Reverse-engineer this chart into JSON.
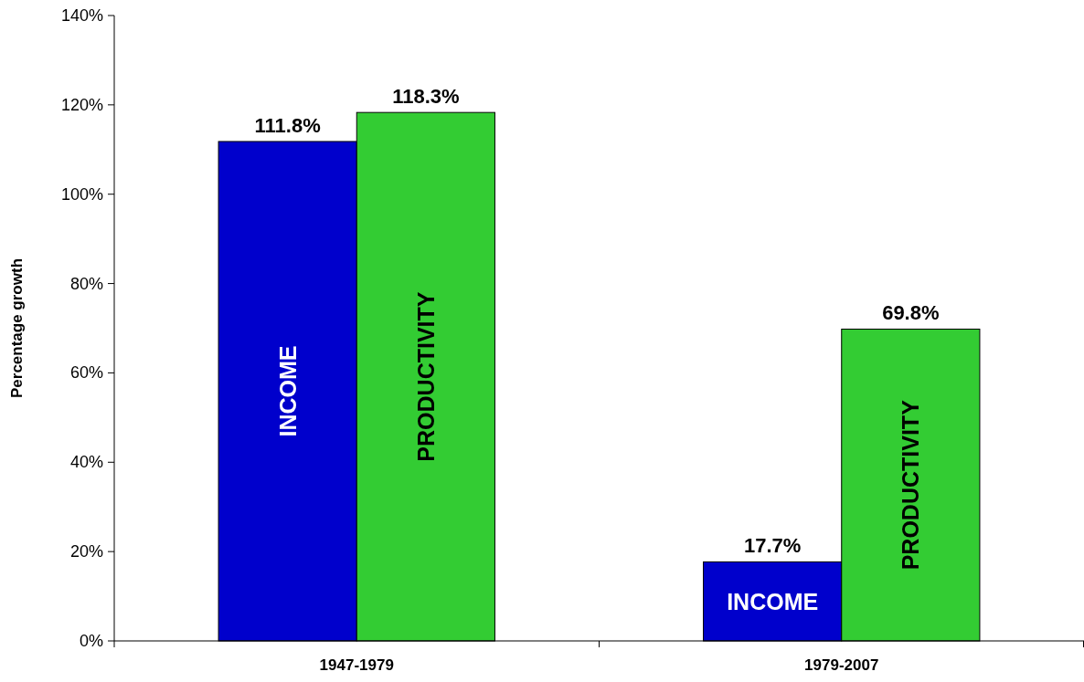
{
  "chart_data": {
    "type": "bar",
    "ylabel": "Percentage growth",
    "categories": [
      "1947-1979",
      "1979-2007"
    ],
    "series": [
      {
        "name": "INCOME",
        "color": "#0000cc",
        "values": [
          111.8,
          17.7
        ],
        "value_labels": [
          "111.8%",
          "17.7%"
        ]
      },
      {
        "name": "PRODUCTIVITY",
        "color": "#33cc33",
        "values": [
          118.3,
          69.8
        ],
        "value_labels": [
          "118.3%",
          "69.8%"
        ]
      }
    ],
    "ylim": [
      0,
      140
    ],
    "yticks": [
      {
        "value": 0,
        "label": "0%"
      },
      {
        "value": 20,
        "label": "20%"
      },
      {
        "value": 40,
        "label": "40%"
      },
      {
        "value": 60,
        "label": "60%"
      },
      {
        "value": 80,
        "label": "80%"
      },
      {
        "value": 100,
        "label": "100%"
      },
      {
        "value": 120,
        "label": "120%"
      },
      {
        "value": 140,
        "label": "140%"
      }
    ],
    "grid": false
  }
}
